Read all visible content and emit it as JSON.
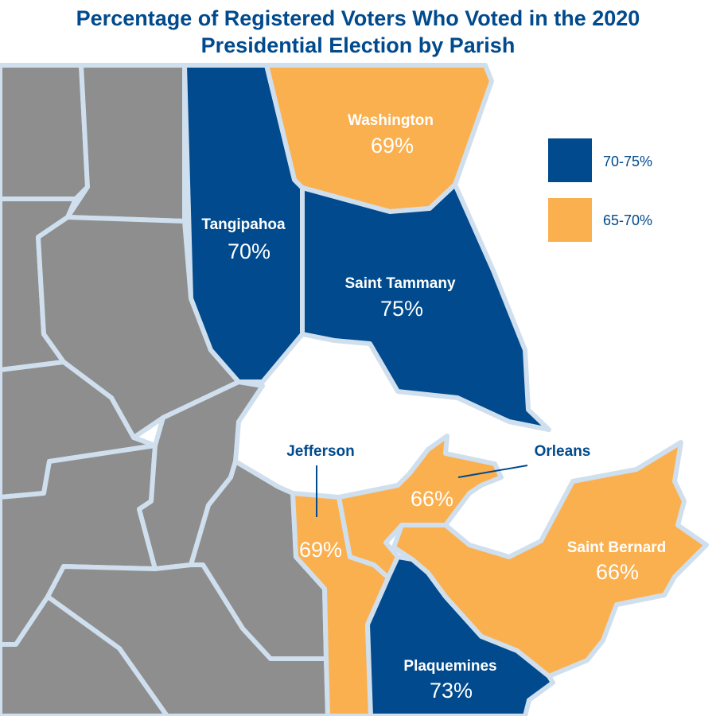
{
  "title": {
    "line1": "Percentage of Registered Voters Who Voted in the 2020",
    "line2": "Presidential Election by Parish"
  },
  "colors": {
    "high": "#004a8d",
    "mid": "#fbb04f",
    "other": "#8e8e8e",
    "border": "#cfdfee",
    "water": "#ffffff"
  },
  "legend": {
    "items": [
      {
        "label": "70-75%",
        "color": "#004a8d"
      },
      {
        "label": "65-70%",
        "color": "#fbb04f"
      }
    ]
  },
  "parishes": {
    "washington": {
      "name": "Washington",
      "value": "69%"
    },
    "tangipahoa": {
      "name": "Tangipahoa",
      "value": "70%"
    },
    "saint_tammany": {
      "name": "Saint Tammany",
      "value": "75%"
    },
    "jefferson": {
      "name": "Jefferson",
      "value": "69%"
    },
    "orleans": {
      "name": "Orleans",
      "value": "66%"
    },
    "saint_bernard": {
      "name": "Saint Bernard",
      "value": "66%"
    },
    "plaquemines": {
      "name": "Plaquemines",
      "value": "73%"
    }
  }
}
